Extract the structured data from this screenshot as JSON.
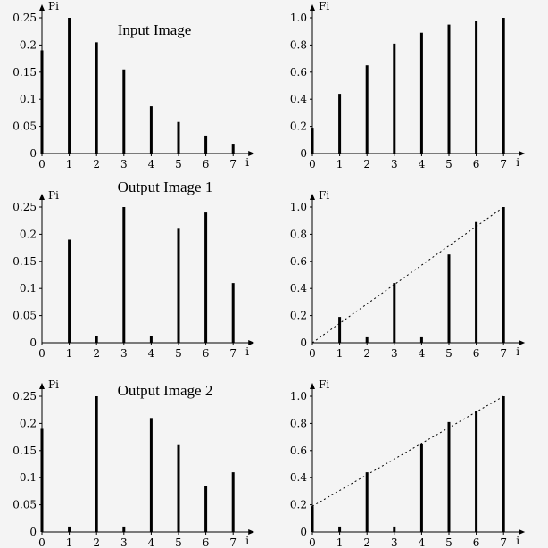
{
  "chart_data": [
    {
      "type": "bar",
      "panel": "input-pi",
      "title": "Input Image",
      "ylabel": "Pi",
      "xlabel": "i",
      "x": [
        0,
        1,
        2,
        3,
        4,
        5,
        6,
        7
      ],
      "values": [
        0.19,
        0.25,
        0.205,
        0.155,
        0.087,
        0.058,
        0.033,
        0.018
      ],
      "ylim": [
        0,
        0.25
      ],
      "yticks": [
        "0",
        "0.05",
        "0.1",
        "0.15",
        "0.2",
        "0.25"
      ],
      "xticks": [
        "0",
        "1",
        "2",
        "3",
        "4",
        "5",
        "6",
        "7"
      ]
    },
    {
      "type": "bar",
      "panel": "input-fi",
      "title": "",
      "ylabel": "Fi",
      "xlabel": "i",
      "x": [
        0,
        1,
        2,
        3,
        4,
        5,
        6,
        7
      ],
      "values": [
        0.19,
        0.44,
        0.65,
        0.81,
        0.89,
        0.95,
        0.98,
        1.0
      ],
      "ylim": [
        0,
        1
      ],
      "yticks": [
        "0",
        "0.2",
        "0.4",
        "0.6",
        "0.8",
        "1.0"
      ],
      "xticks": [
        "0",
        "1",
        "2",
        "3",
        "4",
        "5",
        "6",
        "7"
      ]
    },
    {
      "type": "bar",
      "panel": "out1-pi",
      "title": "Output Image 1",
      "ylabel": "Pi",
      "xlabel": "i",
      "x": [
        0,
        1,
        2,
        3,
        4,
        5,
        6,
        7
      ],
      "values": [
        0,
        0.19,
        0.012,
        0.25,
        0.012,
        0.21,
        0.24,
        0.11
      ],
      "ylim": [
        0,
        0.25
      ],
      "yticks": [
        "0",
        "0.05",
        "0.1",
        "0.15",
        "0.2",
        "0.25"
      ],
      "xticks": [
        "0",
        "1",
        "2",
        "3",
        "4",
        "5",
        "6",
        "7"
      ]
    },
    {
      "type": "bar",
      "panel": "out1-fi",
      "title": "",
      "ylabel": "Fi",
      "xlabel": "i",
      "x": [
        0,
        1,
        2,
        3,
        4,
        5,
        6,
        7
      ],
      "values": [
        0,
        0.19,
        0.04,
        0.44,
        0.04,
        0.65,
        0.89,
        1.0
      ],
      "line": {
        "x": [
          0,
          7
        ],
        "y": [
          0,
          1.0
        ]
      },
      "ylim": [
        0,
        1
      ],
      "yticks": [
        "0",
        "0.2",
        "0.4",
        "0.6",
        "0.8",
        "1.0"
      ],
      "xticks": [
        "0",
        "1",
        "2",
        "3",
        "4",
        "5",
        "6",
        "7"
      ]
    },
    {
      "type": "bar",
      "panel": "out2-pi",
      "title": "Output Image 2",
      "ylabel": "Pi",
      "xlabel": "i",
      "x": [
        0,
        1,
        2,
        3,
        4,
        5,
        6,
        7
      ],
      "values": [
        0.19,
        0.01,
        0.25,
        0.01,
        0.21,
        0.16,
        0.085,
        0.11
      ],
      "ylim": [
        0,
        0.25
      ],
      "yticks": [
        "0",
        "0.05",
        "0.1",
        "0.15",
        "0.2",
        "0.25"
      ],
      "xticks": [
        "0",
        "1",
        "2",
        "3",
        "4",
        "5",
        "6",
        "7"
      ]
    },
    {
      "type": "bar",
      "panel": "out2-fi",
      "title": "",
      "ylabel": "Fi",
      "xlabel": "i",
      "x": [
        0,
        1,
        2,
        3,
        4,
        5,
        6,
        7
      ],
      "values": [
        0.19,
        0.04,
        0.44,
        0.04,
        0.65,
        0.81,
        0.89,
        1.0
      ],
      "line": {
        "x": [
          0,
          7
        ],
        "y": [
          0.19,
          1.0
        ]
      },
      "ylim": [
        0,
        1
      ],
      "yticks": [
        "0",
        "0.2",
        "0.4",
        "0.6",
        "0.8",
        "1.0"
      ],
      "xticks": [
        "0",
        "1",
        "2",
        "3",
        "4",
        "5",
        "6",
        "7"
      ]
    }
  ]
}
